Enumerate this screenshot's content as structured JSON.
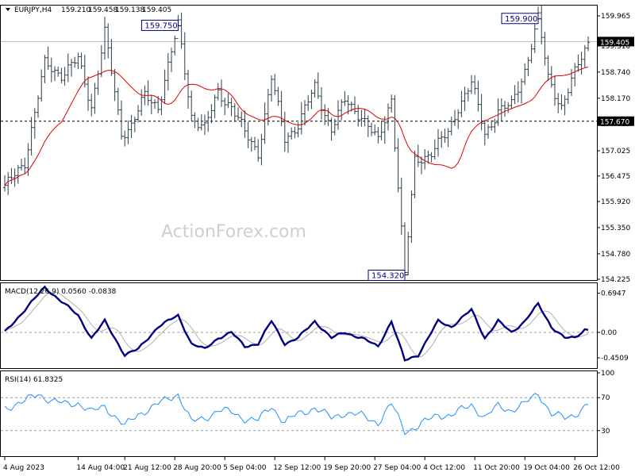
{
  "chart_data": [
    {
      "type": "ohlc",
      "header": {
        "symbol": "EURJPY,H4",
        "open": "159.210",
        "high": "159.458",
        "low": "159.138",
        "close": "159.405"
      },
      "watermark": "ActionForex.com",
      "y_ticks": [
        "159.965",
        "159.310",
        "158.740",
        "158.170",
        "157.615",
        "157.025",
        "156.475",
        "155.920",
        "155.350",
        "154.780",
        "154.225"
      ],
      "ylim": [
        154.225,
        159.965
      ],
      "current_price": {
        "value": 159.405,
        "label": "159.405"
      },
      "level_line": {
        "value": 157.67,
        "label": "157.670"
      },
      "annotations": [
        {
          "label": "159.750",
          "value": 159.75,
          "bar": 52
        },
        {
          "label": "159.900",
          "value": 159.9,
          "bar": 160
        },
        {
          "label": "154.320",
          "value": 154.32,
          "bar": 120
        }
      ],
      "moving_average_color": "#e00000",
      "bar_color": "#2b3e48",
      "x_ticks": [
        {
          "label": "4 Aug 2023",
          "bar": 0
        },
        {
          "label": "14 Aug 04:00",
          "bar": 22
        },
        {
          "label": "21 Aug 12:00",
          "bar": 36
        },
        {
          "label": "28 Aug 20:00",
          "bar": 51
        },
        {
          "label": "5 Sep 04:00",
          "bar": 66
        },
        {
          "label": "12 Sep 12:00",
          "bar": 81
        },
        {
          "label": "19 Sep 20:00",
          "bar": 96
        },
        {
          "label": "27 Sep 04:00",
          "bar": 111
        },
        {
          "label": "4 Oct 12:00",
          "bar": 126
        },
        {
          "label": "11 Oct 20:00",
          "bar": 141
        },
        {
          "label": "19 Oct 04:00",
          "bar": 156
        },
        {
          "label": "26 Oct 12:00",
          "bar": 171
        }
      ],
      "anchors": [
        [
          0,
          156.2
        ],
        [
          6,
          156.8
        ],
        [
          12,
          158.9
        ],
        [
          17,
          158.7
        ],
        [
          22,
          159.0
        ],
        [
          26,
          158.0
        ],
        [
          30,
          159.6
        ],
        [
          35,
          157.4
        ],
        [
          38,
          157.6
        ],
        [
          42,
          158.2
        ],
        [
          46,
          158.0
        ],
        [
          52,
          159.75
        ],
        [
          56,
          157.8
        ],
        [
          60,
          157.5
        ],
        [
          64,
          158.3
        ],
        [
          68,
          158.0
        ],
        [
          72,
          157.4
        ],
        [
          76,
          157.0
        ],
        [
          80,
          158.6
        ],
        [
          84,
          157.3
        ],
        [
          88,
          157.6
        ],
        [
          93,
          158.4
        ],
        [
          98,
          157.5
        ],
        [
          102,
          158.1
        ],
        [
          107,
          157.8
        ],
        [
          112,
          157.2
        ],
        [
          116,
          158.2
        ],
        [
          120,
          154.32
        ],
        [
          123,
          156.8
        ],
        [
          128,
          157.0
        ],
        [
          133,
          157.4
        ],
        [
          136,
          158.0
        ],
        [
          140,
          158.5
        ],
        [
          144,
          157.4
        ],
        [
          148,
          157.9
        ],
        [
          152,
          158.0
        ],
        [
          156,
          158.8
        ],
        [
          160,
          159.9
        ],
        [
          163,
          158.6
        ],
        [
          167,
          158.0
        ],
        [
          171,
          158.7
        ],
        [
          175,
          159.405
        ]
      ]
    },
    {
      "type": "line",
      "label": "MACD(12,26,9) 0.0560 -0.0838",
      "y_ticks": [
        "0.6947",
        "0.00",
        "-0.4509"
      ],
      "ylim": [
        -0.62,
        0.83
      ],
      "macd_color": "#000080",
      "signal_color": "#b0b0b0",
      "anchors": [
        [
          0,
          0.0
        ],
        [
          6,
          0.4
        ],
        [
          12,
          0.8
        ],
        [
          18,
          0.5
        ],
        [
          22,
          0.3
        ],
        [
          26,
          -0.1
        ],
        [
          30,
          0.2
        ],
        [
          36,
          -0.4
        ],
        [
          40,
          -0.3
        ],
        [
          46,
          0.1
        ],
        [
          52,
          0.3
        ],
        [
          56,
          -0.2
        ],
        [
          60,
          -0.3
        ],
        [
          64,
          -0.1
        ],
        [
          68,
          0.0
        ],
        [
          72,
          -0.25
        ],
        [
          76,
          -0.2
        ],
        [
          80,
          0.2
        ],
        [
          84,
          -0.2
        ],
        [
          88,
          -0.1
        ],
        [
          93,
          0.2
        ],
        [
          98,
          -0.1
        ],
        [
          102,
          0.0
        ],
        [
          107,
          -0.1
        ],
        [
          112,
          -0.25
        ],
        [
          116,
          0.2
        ],
        [
          120,
          -0.5
        ],
        [
          124,
          -0.4
        ],
        [
          130,
          0.2
        ],
        [
          134,
          0.1
        ],
        [
          140,
          0.4
        ],
        [
          144,
          -0.1
        ],
        [
          148,
          0.2
        ],
        [
          152,
          0.0
        ],
        [
          156,
          0.2
        ],
        [
          160,
          0.5
        ],
        [
          164,
          0.1
        ],
        [
          168,
          -0.1
        ],
        [
          171,
          -0.1
        ],
        [
          174,
          0.056
        ]
      ]
    },
    {
      "type": "line",
      "label": "RSI(14) 61.8325",
      "y_ticks": [
        "100",
        "70",
        "30",
        "0"
      ],
      "ylim": [
        0,
        100
      ],
      "levels": [
        70,
        30
      ],
      "line_color": "#1e90ff",
      "anchors": [
        [
          0,
          58
        ],
        [
          6,
          65
        ],
        [
          10,
          75
        ],
        [
          14,
          66
        ],
        [
          18,
          62
        ],
        [
          22,
          64
        ],
        [
          26,
          52
        ],
        [
          30,
          60
        ],
        [
          36,
          35
        ],
        [
          40,
          50
        ],
        [
          46,
          62
        ],
        [
          52,
          75
        ],
        [
          56,
          40
        ],
        [
          60,
          45
        ],
        [
          64,
          55
        ],
        [
          68,
          52
        ],
        [
          72,
          45
        ],
        [
          76,
          42
        ],
        [
          80,
          60
        ],
        [
          84,
          40
        ],
        [
          88,
          50
        ],
        [
          93,
          58
        ],
        [
          98,
          45
        ],
        [
          102,
          52
        ],
        [
          107,
          48
        ],
        [
          112,
          40
        ],
        [
          116,
          62
        ],
        [
          120,
          30
        ],
        [
          124,
          35
        ],
        [
          130,
          50
        ],
        [
          134,
          48
        ],
        [
          140,
          62
        ],
        [
          144,
          45
        ],
        [
          148,
          60
        ],
        [
          152,
          55
        ],
        [
          156,
          62
        ],
        [
          160,
          76
        ],
        [
          164,
          50
        ],
        [
          168,
          45
        ],
        [
          171,
          50
        ],
        [
          175,
          61.83
        ]
      ]
    }
  ]
}
